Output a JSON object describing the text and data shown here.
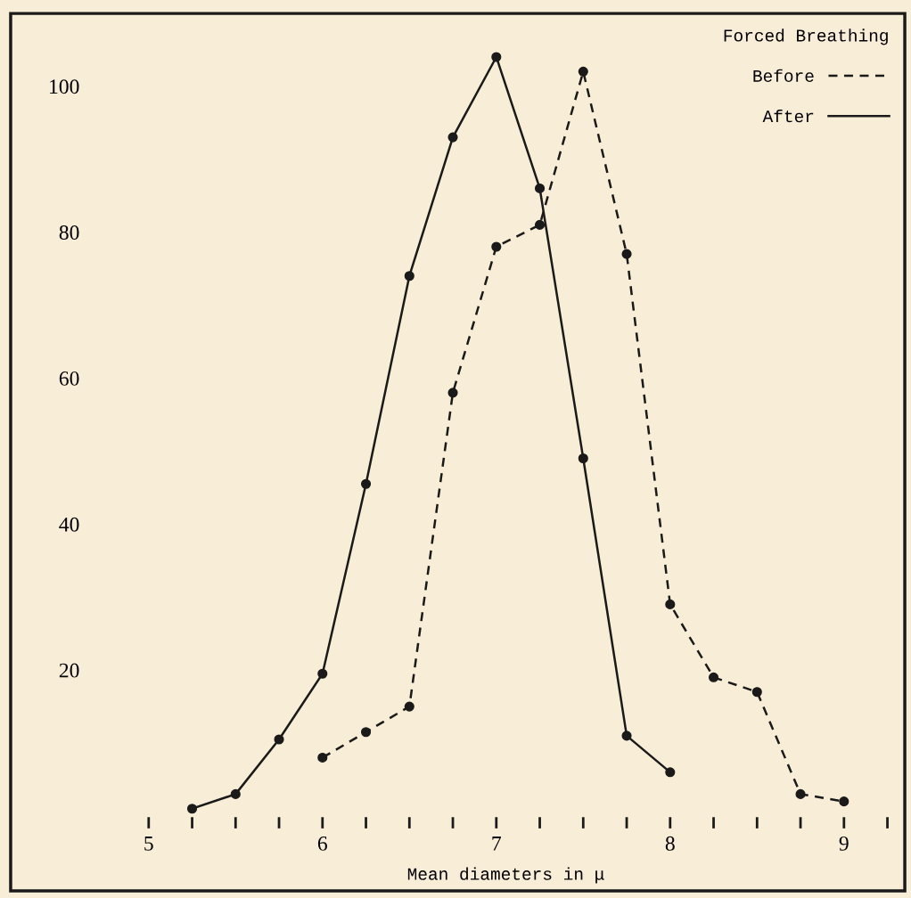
{
  "chart_data": {
    "type": "line",
    "xlabel": "Mean diameters in μ",
    "legend_title": "Forced Breathing",
    "series": [
      {
        "name": "Before",
        "color": "#1a1a1a",
        "line_style": "dashed",
        "x": [
          6.0,
          6.25,
          6.5,
          6.75,
          7.0,
          7.25,
          7.5,
          7.75,
          8.0,
          8.25,
          8.5,
          8.75,
          9.0
        ],
        "values": [
          8,
          11.5,
          15,
          58,
          78,
          81,
          102,
          77,
          29,
          19,
          17,
          3,
          2
        ]
      },
      {
        "name": "After",
        "color": "#1a1a1a",
        "line_style": "solid",
        "x": [
          5.25,
          5.5,
          5.75,
          6.0,
          6.25,
          6.5,
          6.75,
          7.0,
          7.25,
          7.5,
          7.75,
          8.0
        ],
        "values": [
          1,
          3,
          10.5,
          19.5,
          45.5,
          74,
          93,
          104,
          86,
          49,
          11,
          6
        ]
      }
    ],
    "xlim": [
      4.76,
      9.35
    ],
    "ylim": [
      0,
      110
    ],
    "xticks": [
      5,
      {
        "value": 5.25,
        "label": null
      },
      {
        "value": 5.5,
        "label": null
      },
      {
        "value": 5.75,
        "label": null
      },
      6,
      {
        "value": 6.25,
        "label": null
      },
      {
        "value": 6.5,
        "label": null
      },
      {
        "value": 6.75,
        "label": null
      },
      7,
      {
        "value": 7.25,
        "label": null
      },
      {
        "value": 7.5,
        "label": null
      },
      {
        "value": 7.75,
        "label": null
      },
      8,
      {
        "value": 8.25,
        "label": null
      },
      {
        "value": 8.5,
        "label": null
      },
      {
        "value": 8.75,
        "label": null
      },
      9,
      {
        "value": 9.25,
        "label": null
      }
    ],
    "yticks": [
      20,
      40,
      60,
      80,
      100
    ],
    "marker": "circle",
    "legend": "top right",
    "grid": false
  }
}
